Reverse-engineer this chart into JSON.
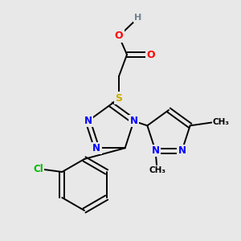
{
  "background_color": "#e8e8e8",
  "fig_width": 3.0,
  "fig_height": 3.0,
  "dpi": 100,
  "bond_color": "#000000",
  "bond_width": 1.4,
  "colors": {
    "N": "#0000ff",
    "O": "#ff0000",
    "S": "#ccaa00",
    "Cl": "#00bb00",
    "H": "#708090",
    "C": "#000000"
  }
}
